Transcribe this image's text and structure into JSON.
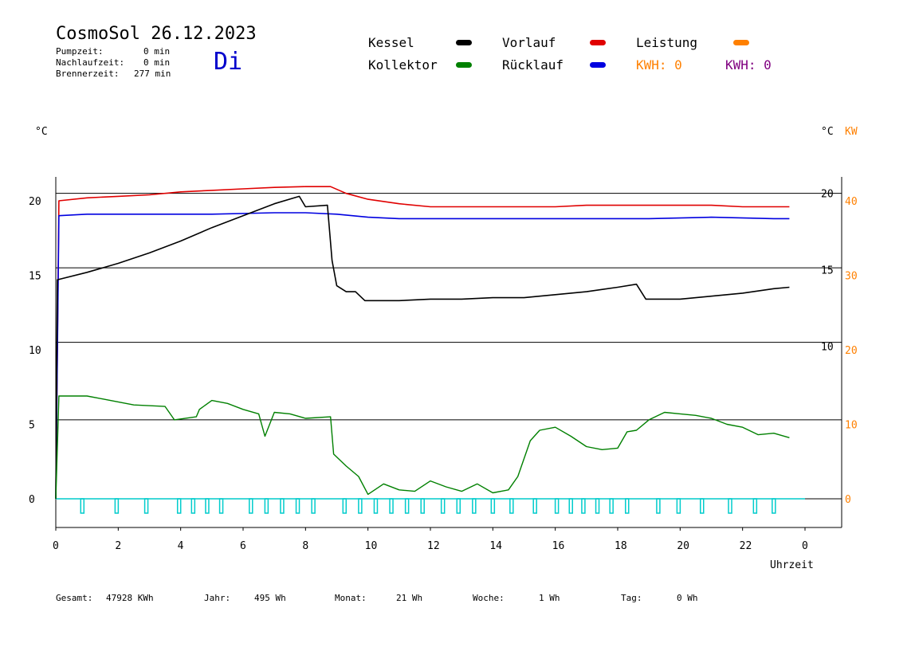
{
  "header": {
    "title": "CosmoSol 26.12.2023",
    "day": "Di",
    "pump_label": "Pumpzeit:",
    "pump_value": "0 min",
    "nachlauf_label": "Nachlaufzeit:",
    "nachlauf_value": "0 min",
    "brenner_label": "Brennerzeit:",
    "brenner_value": "277 min"
  },
  "legend": {
    "kessel": "Kessel",
    "kollektor": "Kollektor",
    "vorlauf": "Vorlauf",
    "ruecklauf": "Rücklauf",
    "leistung": "Leistung",
    "kwh_orange": "KWH: 0",
    "kwh_purple": "KWH: 0",
    "colors": {
      "kessel": "#000000",
      "kollektor": "#008000",
      "vorlauf": "#e00000",
      "ruecklauf": "#0000e0",
      "leistung": "#ff8000",
      "purple": "#800080",
      "pump": "#00cccc"
    }
  },
  "axes": {
    "left_unit": "°C",
    "right_unit": "°C",
    "right_unit2": "KW",
    "xlabel": "Uhrzeit"
  },
  "footer": {
    "gesamt_label": "Gesamt:",
    "gesamt_value": "47928 KWh",
    "jahr_label": "Jahr:",
    "jahr_value": "495 Wh",
    "monat_label": "Monat:",
    "monat_value": "21 Wh",
    "woche_label": "Woche:",
    "woche_value": "1 Wh",
    "tag_label": "Tag:",
    "tag_value": "0 Wh"
  },
  "chart_data": {
    "type": "line",
    "x_range": [
      0,
      24
    ],
    "x_ticks": [
      "0",
      "2",
      "4",
      "6",
      "8",
      "10",
      "12",
      "14",
      "16",
      "18",
      "20",
      "22",
      "0"
    ],
    "left_axis": {
      "range": [
        -1.5,
        22
      ],
      "ticks": [
        "0",
        "5",
        "10",
        "15",
        "20"
      ],
      "tick_values": [
        0,
        5,
        10,
        15,
        20
      ]
    },
    "right_axis_temp": {
      "ticks": [
        "10",
        "15",
        "20"
      ],
      "tick_values": [
        10,
        15,
        20
      ],
      "reference_values": [
        5.3,
        10.5,
        15.5,
        20.5
      ]
    },
    "right_axis_kw": {
      "ticks": [
        "0",
        "10",
        "20",
        "30",
        "40"
      ],
      "tick_values": [
        0,
        10,
        20,
        30,
        40
      ]
    },
    "series": [
      {
        "name": "Vorlauf",
        "color": "#e00000",
        "points": [
          [
            0,
            0
          ],
          [
            0.1,
            20.0
          ],
          [
            1,
            20.2
          ],
          [
            2,
            20.3
          ],
          [
            3,
            20.4
          ],
          [
            4,
            20.6
          ],
          [
            5,
            20.7
          ],
          [
            6,
            20.8
          ],
          [
            7,
            20.9
          ],
          [
            8,
            20.95
          ],
          [
            8.8,
            20.95
          ],
          [
            9.3,
            20.5
          ],
          [
            10,
            20.1
          ],
          [
            11,
            19.8
          ],
          [
            12,
            19.6
          ],
          [
            13,
            19.6
          ],
          [
            14,
            19.6
          ],
          [
            15,
            19.6
          ],
          [
            16,
            19.6
          ],
          [
            17,
            19.7
          ],
          [
            18,
            19.7
          ],
          [
            19,
            19.7
          ],
          [
            20,
            19.7
          ],
          [
            21,
            19.7
          ],
          [
            22,
            19.6
          ],
          [
            23,
            19.6
          ],
          [
            23.5,
            19.6
          ]
        ]
      },
      {
        "name": "Rücklauf",
        "color": "#0000e0",
        "points": [
          [
            0,
            0
          ],
          [
            0.1,
            19.0
          ],
          [
            1,
            19.1
          ],
          [
            3,
            19.1
          ],
          [
            5,
            19.1
          ],
          [
            7,
            19.2
          ],
          [
            8,
            19.2
          ],
          [
            9,
            19.1
          ],
          [
            10,
            18.9
          ],
          [
            11,
            18.8
          ],
          [
            13,
            18.8
          ],
          [
            15,
            18.8
          ],
          [
            17,
            18.8
          ],
          [
            19,
            18.8
          ],
          [
            21,
            18.9
          ],
          [
            23,
            18.8
          ],
          [
            23.5,
            18.8
          ]
        ]
      },
      {
        "name": "Kessel",
        "color": "#000000",
        "points": [
          [
            0,
            0
          ],
          [
            0.05,
            14.7
          ],
          [
            1,
            15.2
          ],
          [
            2,
            15.8
          ],
          [
            3,
            16.5
          ],
          [
            4,
            17.3
          ],
          [
            5,
            18.2
          ],
          [
            6,
            19.0
          ],
          [
            7,
            19.8
          ],
          [
            7.8,
            20.3
          ],
          [
            8.0,
            19.6
          ],
          [
            8.7,
            19.7
          ],
          [
            8.85,
            16.0
          ],
          [
            9.0,
            14.3
          ],
          [
            9.3,
            13.9
          ],
          [
            9.6,
            13.9
          ],
          [
            9.9,
            13.3
          ],
          [
            11,
            13.3
          ],
          [
            12,
            13.4
          ],
          [
            13,
            13.4
          ],
          [
            14,
            13.5
          ],
          [
            15,
            13.5
          ],
          [
            16,
            13.7
          ],
          [
            17,
            13.9
          ],
          [
            18,
            14.2
          ],
          [
            18.6,
            14.4
          ],
          [
            18.9,
            13.4
          ],
          [
            20,
            13.4
          ],
          [
            21,
            13.6
          ],
          [
            22,
            13.8
          ],
          [
            23,
            14.1
          ],
          [
            23.5,
            14.2
          ]
        ]
      },
      {
        "name": "Kollektor",
        "color": "#008000",
        "points": [
          [
            0,
            0
          ],
          [
            0.1,
            6.9
          ],
          [
            1,
            6.9
          ],
          [
            1.5,
            6.7
          ],
          [
            2,
            6.5
          ],
          [
            2.5,
            6.3
          ],
          [
            3.5,
            6.2
          ],
          [
            3.8,
            5.3
          ],
          [
            4.5,
            5.5
          ],
          [
            4.6,
            6.0
          ],
          [
            5,
            6.6
          ],
          [
            5.5,
            6.4
          ],
          [
            6,
            6.0
          ],
          [
            6.5,
            5.7
          ],
          [
            6.7,
            4.2
          ],
          [
            7,
            5.8
          ],
          [
            7.5,
            5.7
          ],
          [
            8,
            5.4
          ],
          [
            8.8,
            5.5
          ],
          [
            8.9,
            3.0
          ],
          [
            9.3,
            2.2
          ],
          [
            9.7,
            1.5
          ],
          [
            10,
            0.3
          ],
          [
            10.5,
            1.0
          ],
          [
            11,
            0.6
          ],
          [
            11.5,
            0.5
          ],
          [
            12,
            1.2
          ],
          [
            12.5,
            0.8
          ],
          [
            13,
            0.5
          ],
          [
            13.5,
            1.0
          ],
          [
            14,
            0.4
          ],
          [
            14.5,
            0.6
          ],
          [
            14.8,
            1.5
          ],
          [
            15.2,
            3.9
          ],
          [
            15.5,
            4.6
          ],
          [
            16,
            4.8
          ],
          [
            16.5,
            4.2
          ],
          [
            17,
            3.5
          ],
          [
            17.5,
            3.3
          ],
          [
            18,
            3.4
          ],
          [
            18.3,
            4.5
          ],
          [
            18.6,
            4.6
          ],
          [
            19,
            5.3
          ],
          [
            19.5,
            5.8
          ],
          [
            20,
            5.7
          ],
          [
            20.5,
            5.6
          ],
          [
            21,
            5.4
          ],
          [
            21.5,
            5.0
          ],
          [
            22,
            4.8
          ],
          [
            22.5,
            4.3
          ],
          [
            23,
            4.4
          ],
          [
            23.5,
            4.1
          ]
        ]
      }
    ],
    "pump_pulses_hours": [
      0.85,
      1.95,
      2.9,
      3.95,
      4.4,
      4.85,
      5.3,
      6.25,
      6.75,
      7.25,
      7.75,
      8.25,
      9.25,
      9.75,
      10.25,
      10.75,
      11.25,
      11.75,
      12.4,
      12.9,
      13.4,
      14.0,
      14.6,
      15.35,
      16.05,
      16.5,
      16.9,
      17.35,
      17.8,
      18.3,
      19.3,
      19.95,
      20.7,
      21.6,
      22.4,
      23.0
    ]
  }
}
